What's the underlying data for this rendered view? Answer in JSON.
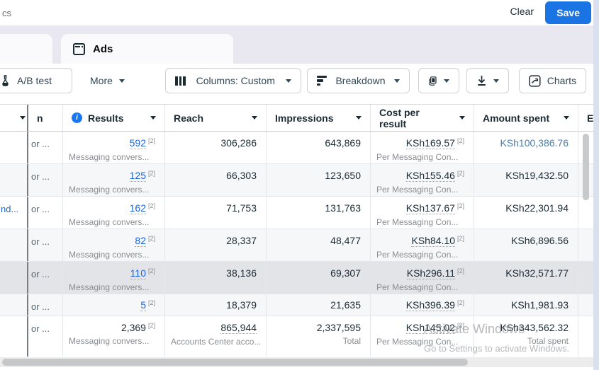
{
  "topbar": {
    "breadcrumb_fragment": "cs",
    "clear_label": "Clear",
    "save_label": "Save"
  },
  "tabs": {
    "ads_label": "Ads"
  },
  "toolbar": {
    "ab_test_label": "A/B test",
    "more_label": "More",
    "columns_label": "Columns: Custom",
    "breakdown_label": "Breakdown",
    "charts_label": "Charts"
  },
  "table": {
    "columns": [
      {
        "key": "name",
        "label": "",
        "caret": true
      },
      {
        "key": "attribution",
        "label": "n",
        "caret": false
      },
      {
        "key": "results",
        "label": "Results",
        "caret": true,
        "info": true
      },
      {
        "key": "reach",
        "label": "Reach",
        "caret": true
      },
      {
        "key": "impressions",
        "label": "Impressions",
        "caret": true
      },
      {
        "key": "cost",
        "label": "Cost per result",
        "caret": true
      },
      {
        "key": "spent",
        "label": "Amount spent",
        "caret": true
      },
      {
        "key": "ends",
        "label": "E",
        "caret": false
      }
    ],
    "rows": [
      {
        "name": "",
        "attribution": "or ...",
        "results": "592",
        "results_sup": "[2]",
        "results_sub": "Messaging convers...",
        "reach": "306,286",
        "impressions": "643,869",
        "cost": "KSh169.57",
        "cost_sup": "[2]",
        "cost_sub": "Per Messaging Con...",
        "spent": "KSh100,386.76",
        "spent_blue": true
      },
      {
        "name": "",
        "attribution": "or ...",
        "results": "125",
        "results_sup": "[2]",
        "results_sub": "Messaging convers...",
        "reach": "66,303",
        "impressions": "123,650",
        "cost": "KSh155.46",
        "cost_sup": "[2]",
        "cost_sub": "Per Messaging Con...",
        "spent": "KSh19,432.50",
        "shaded": true
      },
      {
        "name": "nd...",
        "attribution": "or ...",
        "results": "162",
        "results_sup": "[2]",
        "results_sub": "Messaging convers...",
        "reach": "71,753",
        "impressions": "131,763",
        "cost": "KSh137.67",
        "cost_sup": "[2]",
        "cost_sub": "Per Messaging Con...",
        "spent": "KSh22,301.94"
      },
      {
        "name": "",
        "attribution": "or ...",
        "results": "82",
        "results_sup": "[2]",
        "results_sub": "Messaging convers...",
        "reach": "28,337",
        "impressions": "48,477",
        "cost": "KSh84.10",
        "cost_sup": "[2]",
        "cost_sub": "Per Messaging Con...",
        "spent": "KSh6,896.56",
        "shaded": true
      },
      {
        "name": "",
        "attribution": "or ...",
        "results": "110",
        "results_sup": "[2]",
        "results_sub": "Messaging convers...",
        "reach": "38,136",
        "impressions": "69,307",
        "cost": "KSh296.11",
        "cost_sup": "[2]",
        "cost_sub": "Per Messaging Con...",
        "spent": "KSh32,571.77",
        "highlight": true
      },
      {
        "name": "",
        "attribution": "or ...",
        "results": "5",
        "results_sup": "[2]",
        "reach": "18,379",
        "impressions": "21,635",
        "cost": "KSh396.39",
        "cost_sup": "[2]",
        "spent": "KSh1,981.93",
        "compact": true,
        "shaded": true
      },
      {
        "name": "",
        "attribution": "or ...",
        "results": "2,369",
        "results_sup": "[2]",
        "results_sub": "Messaging convers...",
        "results_plain": true,
        "reach": "865,944",
        "reach_underline": true,
        "reach_sub": "Accounts Center acco...",
        "impressions": "2,337,595",
        "impressions_sub": "Total",
        "cost": "KSh145.02",
        "cost_sup": "[2]",
        "cost_sub": "Per Messaging Con...",
        "spent": "KSh343,562.32",
        "spent_sub": "Total spent",
        "is_total": true
      }
    ]
  },
  "watermark": {
    "line1": "Activate Windows",
    "line2": "Go to Settings to activate Windows."
  },
  "colors": {
    "accent_blue": "#1b74e4",
    "link_blue": "#1c64d9",
    "spent_highlight_blue": "#4f7da6",
    "row_highlight": "#e3e4e8",
    "row_shaded": "#f6f7f9",
    "info_icon_blue": "#1877f2"
  }
}
